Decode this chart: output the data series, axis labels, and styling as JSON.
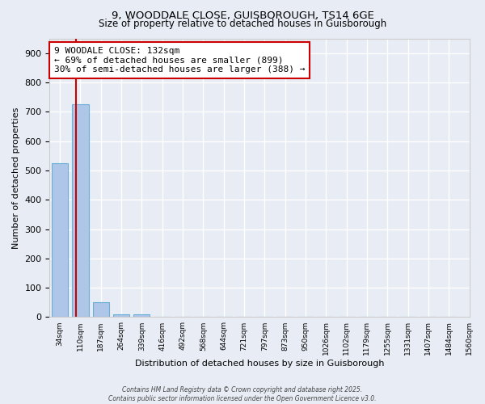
{
  "title_line1": "9, WOODDALE CLOSE, GUISBOROUGH, TS14 6GE",
  "title_line2": "Size of property relative to detached houses in Guisborough",
  "xlabel": "Distribution of detached houses by size in Guisborough",
  "ylabel": "Number of detached properties",
  "bar_values": [
    525,
    725,
    50,
    10,
    10,
    0,
    0,
    0,
    0,
    0,
    0,
    0,
    0,
    0,
    0,
    0,
    0,
    0,
    0,
    0
  ],
  "bar_labels": [
    "34sqm",
    "110sqm",
    "187sqm",
    "264sqm",
    "339sqm",
    "416sqm",
    "492sqm",
    "568sqm",
    "644sqm",
    "721sqm",
    "797sqm",
    "873sqm",
    "950sqm",
    "1026sqm",
    "1102sqm",
    "1179sqm",
    "1255sqm",
    "1331sqm",
    "1407sqm",
    "1484sqm",
    "1560sqm"
  ],
  "bar_color": "#aec6e8",
  "bar_edgecolor": "#6baed6",
  "bar_width": 0.8,
  "ylim": [
    0,
    950
  ],
  "property_line_color": "#cc0000",
  "annotation_text": "9 WOODALE CLOSE: 132sqm\n← 69% of detached houses are smaller (899)\n30% of semi-detached houses are larger (388) →",
  "annotation_box_color": "#ffffff",
  "annotation_box_edgecolor": "#cc0000",
  "bg_color": "#e8edf5",
  "grid_color": "#ffffff",
  "footer_text": "Contains HM Land Registry data © Crown copyright and database right 2025.\nContains public sector information licensed under the Open Government Licence v3.0.",
  "yticks": [
    0,
    100,
    200,
    300,
    400,
    500,
    600,
    700,
    800,
    900
  ]
}
